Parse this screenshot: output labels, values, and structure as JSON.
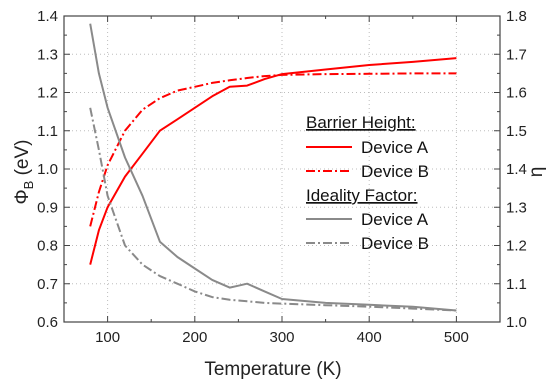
{
  "chart_data": {
    "type": "line",
    "xlabel": "Temperature (K)",
    "ylabel_left": "Φ",
    "ylabel_left_sub": "B",
    "ylabel_left_unit": " (eV)",
    "ylabel_right": "η",
    "xlim": [
      50,
      550
    ],
    "ylim_left": [
      0.6,
      1.4
    ],
    "ylim_right": [
      1.0,
      1.8
    ],
    "xticks": [
      100,
      200,
      300,
      400,
      500
    ],
    "yticks_left": [
      0.6,
      0.7,
      0.8,
      0.9,
      1.0,
      1.1,
      1.2,
      1.3,
      1.4
    ],
    "yticks_right": [
      1.0,
      1.1,
      1.2,
      1.3,
      1.4,
      1.5,
      1.6,
      1.7,
      1.8
    ],
    "grid": true,
    "legend_position": "center-right",
    "legend": {
      "groups": [
        {
          "heading": "Barrier Height:",
          "entries": [
            "Device A",
            "Device B"
          ]
        },
        {
          "heading": "Ideality Factor:",
          "entries": [
            "Device A",
            "Device B"
          ]
        }
      ]
    },
    "series": [
      {
        "group": "Barrier Height",
        "device": "Device A",
        "axis": "left",
        "color": "#ff0000",
        "dash": "solid",
        "x": [
          80,
          90,
          100,
          120,
          140,
          160,
          180,
          200,
          220,
          240,
          260,
          280,
          300,
          350,
          400,
          450,
          500
        ],
        "y": [
          0.75,
          0.84,
          0.9,
          0.98,
          1.04,
          1.1,
          1.13,
          1.16,
          1.19,
          1.215,
          1.218,
          1.235,
          1.248,
          1.26,
          1.272,
          1.28,
          1.29
        ]
      },
      {
        "group": "Barrier Height",
        "device": "Device B",
        "axis": "left",
        "color": "#ff0000",
        "dash": "dashdot",
        "x": [
          80,
          90,
          100,
          120,
          140,
          160,
          180,
          200,
          220,
          240,
          260,
          280,
          300,
          350,
          400,
          450,
          500
        ],
        "y": [
          0.85,
          0.94,
          1.01,
          1.1,
          1.155,
          1.185,
          1.205,
          1.215,
          1.225,
          1.232,
          1.238,
          1.243,
          1.246,
          1.248,
          1.249,
          1.25,
          1.25
        ]
      },
      {
        "group": "Ideality Factor",
        "device": "Device A",
        "axis": "right",
        "color": "#8a8a8a",
        "dash": "solid",
        "x": [
          80,
          90,
          100,
          120,
          140,
          160,
          180,
          200,
          220,
          240,
          250,
          260,
          280,
          300,
          350,
          400,
          450,
          500
        ],
        "y": [
          1.78,
          1.65,
          1.56,
          1.43,
          1.33,
          1.21,
          1.17,
          1.14,
          1.11,
          1.09,
          1.095,
          1.1,
          1.08,
          1.06,
          1.05,
          1.045,
          1.04,
          1.03
        ]
      },
      {
        "group": "Ideality Factor",
        "device": "Device B",
        "axis": "right",
        "color": "#8a8a8a",
        "dash": "dashdot",
        "x": [
          80,
          90,
          100,
          120,
          140,
          160,
          180,
          200,
          220,
          240,
          260,
          280,
          300,
          350,
          400,
          450,
          500
        ],
        "y": [
          1.56,
          1.45,
          1.33,
          1.2,
          1.15,
          1.12,
          1.1,
          1.08,
          1.065,
          1.058,
          1.054,
          1.05,
          1.048,
          1.044,
          1.04,
          1.035,
          1.03
        ]
      }
    ]
  }
}
